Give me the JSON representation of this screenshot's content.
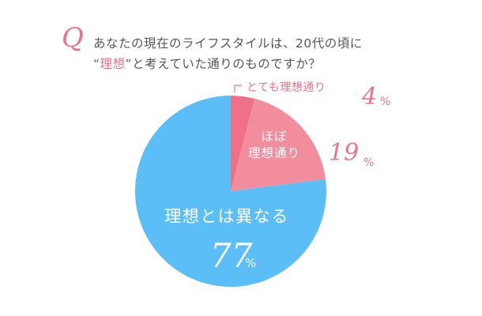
{
  "question": {
    "mark": "Q",
    "line1": "あなたの現在のライフスタイルは、20代の頃に",
    "line2_open_quote": "“",
    "line2_highlight": "理想",
    "line2_close_quote": "”",
    "line2_rest": "と考えていた通りのものですか？"
  },
  "chart_data": {
    "type": "pie",
    "start": "12 o'clock, clockwise",
    "unit": "%",
    "slices": [
      {
        "label": "とても理想通り",
        "value": 4,
        "color": "#ee7189"
      },
      {
        "label": "ほぼ理想通り",
        "label_lines": [
          "ほぼ",
          "理想通り"
        ],
        "value": 19,
        "color": "#f28d9d"
      },
      {
        "label": "理想とは異なる",
        "value": 77,
        "color": "#5bbef6"
      }
    ]
  }
}
